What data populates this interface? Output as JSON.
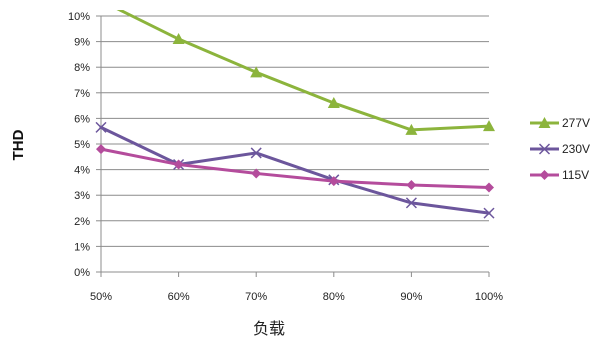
{
  "chart_data": {
    "type": "line",
    "title": "",
    "xlabel": "负载",
    "ylabel": "THD",
    "categories": [
      "50%",
      "60%",
      "70%",
      "80%",
      "90%",
      "100%"
    ],
    "ylim": [
      0,
      10
    ],
    "yticks": [
      "0%",
      "1%",
      "2%",
      "3%",
      "4%",
      "5%",
      "6%",
      "7%",
      "8%",
      "9%",
      "10%"
    ],
    "grid": true,
    "legend_position": "right",
    "series": [
      {
        "name": "277V",
        "values": [
          10.6,
          9.1,
          7.8,
          6.6,
          5.55,
          5.7
        ],
        "color": "#8cb43c",
        "marker": "triangle"
      },
      {
        "name": "230V",
        "values": [
          5.65,
          4.2,
          4.65,
          3.6,
          2.7,
          2.3
        ],
        "color": "#6c569c",
        "marker": "x"
      },
      {
        "name": "115V",
        "values": [
          4.8,
          4.2,
          3.85,
          3.55,
          3.4,
          3.3
        ],
        "color": "#b44c9c",
        "marker": "diamond"
      }
    ]
  }
}
